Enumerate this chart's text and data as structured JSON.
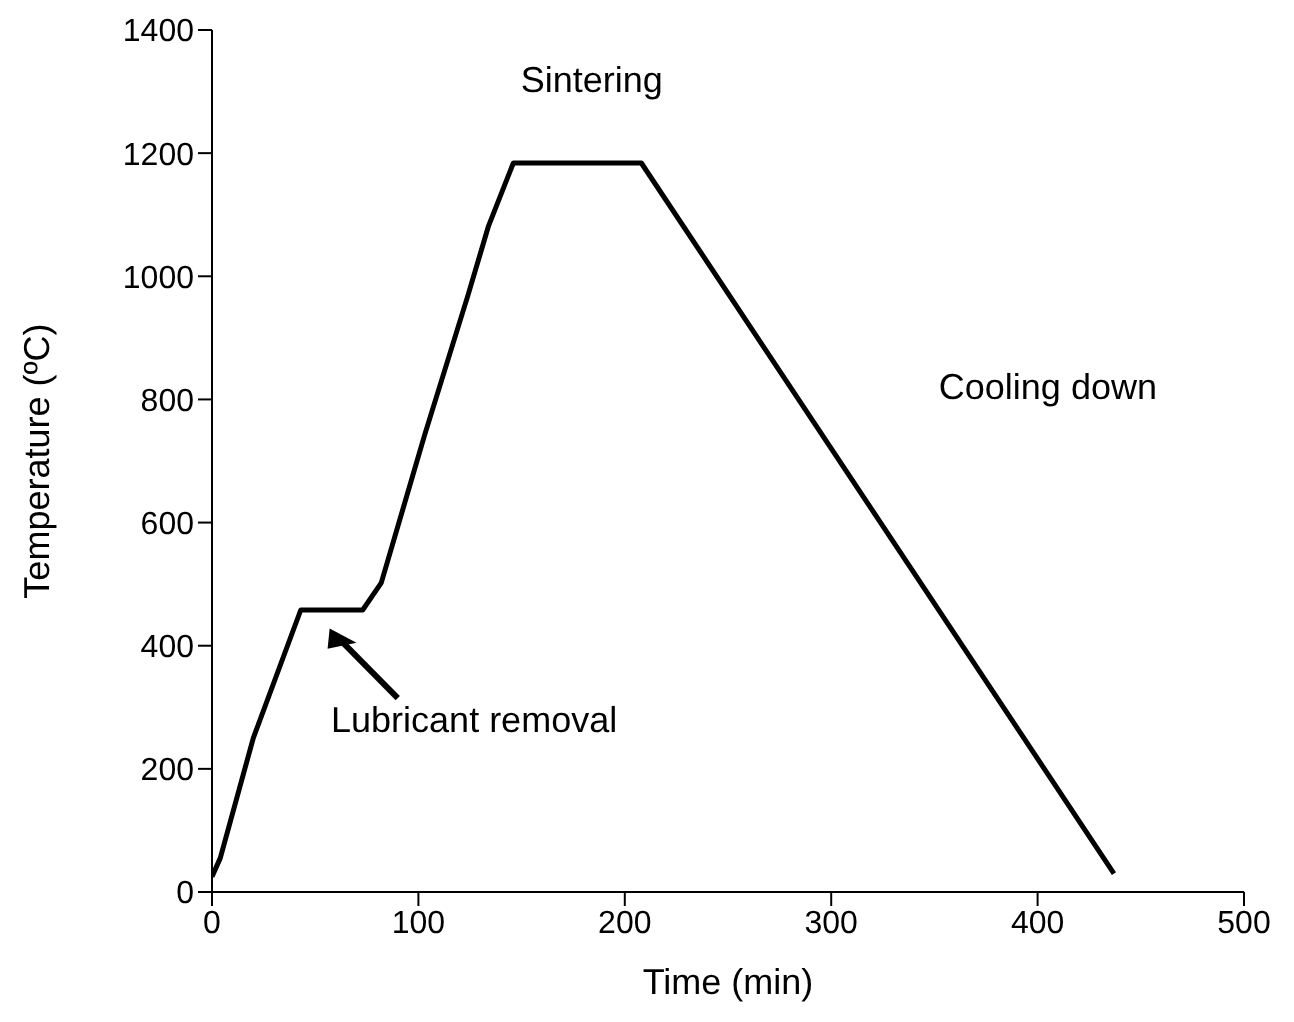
{
  "chart_data": {
    "type": "line",
    "xlabel": "Time (min)",
    "ylabel": "Temperature (ºC)",
    "xlim": [
      0,
      500
    ],
    "xticks": [
      0,
      100,
      200,
      300,
      400,
      500
    ],
    "ylim": [
      0,
      1400
    ],
    "yticks": [
      0,
      200,
      400,
      600,
      800,
      1000,
      1200,
      1400
    ],
    "marker": "none",
    "line_style": "solid",
    "series": [
      {
        "color": "#000000",
        "x": [
          0,
          4,
          20,
          43,
          73,
          82,
          103,
          124,
          134,
          146,
          208,
          437
        ],
        "values": [
          25,
          55,
          250,
          458,
          458,
          502,
          742,
          969,
          1082,
          1184,
          1184,
          30
        ]
      }
    ],
    "annotations": [
      "Sintering",
      "Cooling down",
      "Lubricant removal"
    ]
  }
}
